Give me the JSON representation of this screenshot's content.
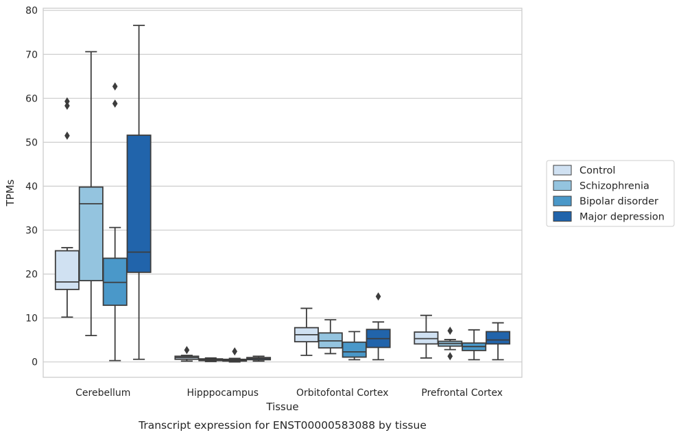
{
  "caption": "Transcript expression for ENST00000583088 by tissue",
  "chart_data": {
    "type": "box",
    "xlabel": "Tissue",
    "ylabel": "TPMs",
    "ylim": [
      -3.5,
      80.5
    ],
    "yticks": [
      0,
      10,
      20,
      30,
      40,
      50,
      60,
      70,
      80
    ],
    "grid": "horizontal",
    "legend_position": "right",
    "categories": [
      "Cerebellum",
      "Hipppocampus",
      "Orbitofontal Cortex",
      "Prefrontal Cortex"
    ],
    "series": [
      {
        "name": "Control",
        "color": "#d0e1f2",
        "boxes": [
          {
            "whislo": 10.2,
            "q1": 16.5,
            "med": 18.2,
            "q3": 25.3,
            "whishi": 26.0,
            "fliers": [
              51.5,
              58.3,
              59.3
            ]
          },
          {
            "whislo": 0.2,
            "q1": 0.6,
            "med": 1.0,
            "q3": 1.3,
            "whishi": 1.5,
            "fliers": [
              2.7
            ]
          },
          {
            "whislo": 1.5,
            "q1": 4.6,
            "med": 6.2,
            "q3": 7.8,
            "whishi": 12.2,
            "fliers": []
          },
          {
            "whislo": 0.9,
            "q1": 4.1,
            "med": 5.3,
            "q3": 6.8,
            "whishi": 10.6,
            "fliers": []
          }
        ]
      },
      {
        "name": "Schizophrenia",
        "color": "#94c4df",
        "boxes": [
          {
            "whislo": 6.0,
            "q1": 18.5,
            "med": 36.0,
            "q3": 39.8,
            "whishi": 70.6,
            "fliers": []
          },
          {
            "whislo": 0.1,
            "q1": 0.3,
            "med": 0.5,
            "q3": 0.7,
            "whishi": 0.9,
            "fliers": []
          },
          {
            "whislo": 1.9,
            "q1": 3.2,
            "med": 4.8,
            "q3": 6.6,
            "whishi": 9.6,
            "fliers": []
          },
          {
            "whislo": 2.8,
            "q1": 3.6,
            "med": 4.2,
            "q3": 4.7,
            "whishi": 5.1,
            "fliers": [
              1.3,
              7.1
            ]
          }
        ]
      },
      {
        "name": "Bipolar disorder",
        "color": "#4a98c9",
        "boxes": [
          {
            "whislo": 0.3,
            "q1": 12.9,
            "med": 18.1,
            "q3": 23.6,
            "whishi": 30.6,
            "fliers": [
              58.8,
              62.7
            ]
          },
          {
            "whislo": 0.0,
            "q1": 0.2,
            "med": 0.4,
            "q3": 0.6,
            "whishi": 0.8,
            "fliers": [
              2.4
            ]
          },
          {
            "whislo": 0.5,
            "q1": 1.1,
            "med": 2.3,
            "q3": 4.5,
            "whishi": 6.9,
            "fliers": []
          },
          {
            "whislo": 0.5,
            "q1": 2.6,
            "med": 3.5,
            "q3": 4.3,
            "whishi": 7.3,
            "fliers": []
          }
        ]
      },
      {
        "name": "Major depression",
        "color": "#2164ab",
        "boxes": [
          {
            "whislo": 0.6,
            "q1": 20.4,
            "med": 25.0,
            "q3": 51.6,
            "whishi": 76.6,
            "fliers": []
          },
          {
            "whislo": 0.2,
            "q1": 0.5,
            "med": 0.8,
            "q3": 1.0,
            "whishi": 1.3,
            "fliers": []
          },
          {
            "whislo": 0.5,
            "q1": 3.3,
            "med": 5.3,
            "q3": 7.4,
            "whishi": 9.1,
            "fliers": [
              14.9
            ]
          },
          {
            "whislo": 0.5,
            "q1": 4.1,
            "med": 5.0,
            "q3": 6.9,
            "whishi": 8.9,
            "fliers": []
          }
        ]
      }
    ]
  }
}
